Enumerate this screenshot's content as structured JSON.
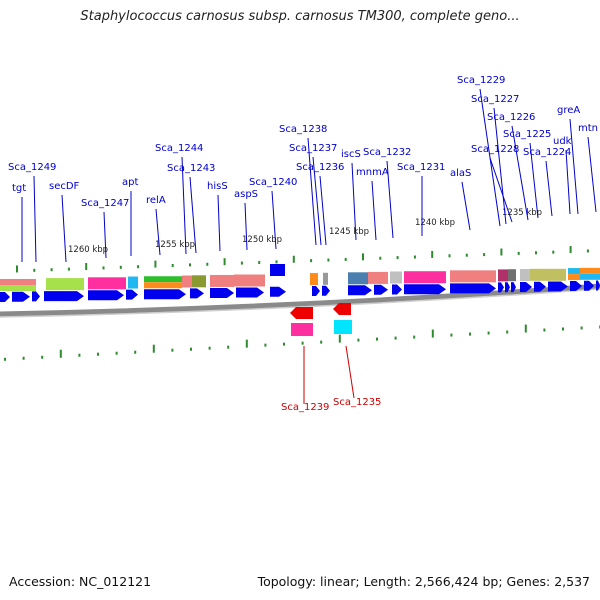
{
  "title": "Staphylococcus carnosus subsp. carnosus TM300, complete geno...",
  "footer": {
    "accession": "Accession: NC_012121",
    "summary": "Topology: linear; Length: 2,566,424 bp; Genes: 2,537"
  },
  "scale_labels": [
    "1260 kbp",
    "1255 kbp",
    "1250 kbp",
    "1245 kbp",
    "1240 kbp",
    "1235 kbp"
  ],
  "colors": {
    "plus_strand_label": "#0000cc",
    "minus_strand_label": "#cc0000",
    "arrow_blue": "#0000ee",
    "arrow_red": "#ee0000",
    "tick_green": "#2e8b2e",
    "backbone": "#888888"
  },
  "plus_genes": [
    {
      "name": "tgt"
    },
    {
      "name": "Sca_1249"
    },
    {
      "name": "secDF"
    },
    {
      "name": "Sca_1247"
    },
    {
      "name": "apt"
    },
    {
      "name": "relA"
    },
    {
      "name": "Sca_1244"
    },
    {
      "name": "Sca_1243"
    },
    {
      "name": "hisS"
    },
    {
      "name": "aspS"
    },
    {
      "name": "Sca_1240"
    },
    {
      "name": "Sca_1238"
    },
    {
      "name": "Sca_1237"
    },
    {
      "name": "Sca_1236"
    },
    {
      "name": "iscS"
    },
    {
      "name": "mnmA"
    },
    {
      "name": "Sca_1232"
    },
    {
      "name": "Sca_1231"
    },
    {
      "name": "alaS"
    },
    {
      "name": "Sca_1229"
    },
    {
      "name": "Sca_1227"
    },
    {
      "name": "Sca_1228"
    },
    {
      "name": "Sca_1226"
    },
    {
      "name": "Sca_1225"
    },
    {
      "name": "Sca_1224"
    },
    {
      "name": "greA"
    },
    {
      "name": "udk"
    },
    {
      "name": "mtn"
    }
  ],
  "minus_genes": [
    {
      "name": "Sca_1239"
    },
    {
      "name": "Sca_1235"
    }
  ]
}
